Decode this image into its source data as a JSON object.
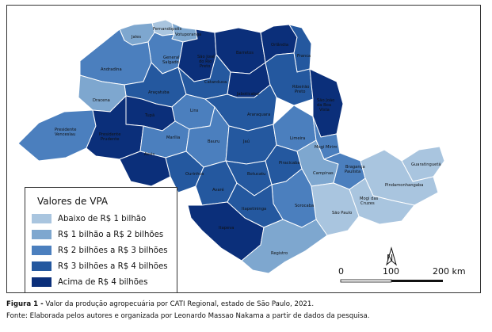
{
  "colors": {
    "class1": "#a9c5df",
    "class2": "#7ea7cf",
    "class3": "#4b7fbe",
    "class4": "#24589f",
    "class5": "#0b2f7a",
    "border": "#ffffff"
  },
  "legend": {
    "title": "Valores de VPA",
    "items": [
      {
        "label": "Abaixo de R$ 1 bilhão",
        "color": "#a9c5df"
      },
      {
        "label": "R$ 1 bilhão a R$ 2 bilhões",
        "color": "#7ea7cf"
      },
      {
        "label": "R$ 2 bilhões a R$ 3 bilhões",
        "color": "#4b7fbe"
      },
      {
        "label": "R$ 3 bilhões a R$ 4 bilhões",
        "color": "#24589f"
      },
      {
        "label": "Acima de R$ 4 bilhões",
        "color": "#0b2f7a"
      }
    ]
  },
  "regions": [
    {
      "name": "Fernandópolis",
      "class": 1
    },
    {
      "name": "Jales",
      "class": 2
    },
    {
      "name": "Votuporanga",
      "class": 2
    },
    {
      "name": "General Salgado",
      "class": 3
    },
    {
      "name": "Andradina",
      "class": 3
    },
    {
      "name": "São José do Rio Preto",
      "class": 5
    },
    {
      "name": "Barretos",
      "class": 5
    },
    {
      "name": "Orlândia",
      "class": 5
    },
    {
      "name": "Franca",
      "class": 4
    },
    {
      "name": "Araçatuba",
      "class": 4
    },
    {
      "name": "Catanduva",
      "class": 4
    },
    {
      "name": "Jaboticabal",
      "class": 5
    },
    {
      "name": "Ribeirão Preto",
      "class": 4
    },
    {
      "name": "Dracena",
      "class": 2
    },
    {
      "name": "Lins",
      "class": 3
    },
    {
      "name": "Tupã",
      "class": 5
    },
    {
      "name": "Araraquara",
      "class": 4
    },
    {
      "name": "São João da Boa Vista",
      "class": 5
    },
    {
      "name": "Presidente Venceslau",
      "class": 3
    },
    {
      "name": "Presidente Prudente",
      "class": 5
    },
    {
      "name": "Marília",
      "class": 3
    },
    {
      "name": "Bauru",
      "class": 3
    },
    {
      "name": "Jaú",
      "class": 4
    },
    {
      "name": "Limeira",
      "class": 3
    },
    {
      "name": "Mogi Mirim",
      "class": 3
    },
    {
      "name": "Assis",
      "class": 5
    },
    {
      "name": "Ourinhos",
      "class": 4
    },
    {
      "name": "Avaré",
      "class": 4
    },
    {
      "name": "Botucatu",
      "class": 4
    },
    {
      "name": "Piracicaba",
      "class": 4
    },
    {
      "name": "Campinas",
      "class": 2
    },
    {
      "name": "Bragança Paulista",
      "class": 3
    },
    {
      "name": "Guaratinguetá",
      "class": 1
    },
    {
      "name": "Pindamonhangaba",
      "class": 1
    },
    {
      "name": "Mogi das Cruzes",
      "class": 1
    },
    {
      "name": "São Paulo",
      "class": 1
    },
    {
      "name": "Sorocaba",
      "class": 3
    },
    {
      "name": "Itapeva",
      "class": 5
    },
    {
      "name": "Itapetininga",
      "class": 4
    },
    {
      "name": "Registro",
      "class": 2
    }
  ],
  "scale": {
    "ticks": [
      "0",
      "100",
      "200 km"
    ]
  },
  "north_arrow": "N",
  "caption": {
    "label": "Figura 1 -",
    "text": " Valor da produção agropecuária por CATI Regional, estado de São Paulo, 2021.",
    "source": "Fonte: Elaborada pelos autores e organizada por Leonardo Massao Nakama a partir de dados da pesquisa."
  }
}
